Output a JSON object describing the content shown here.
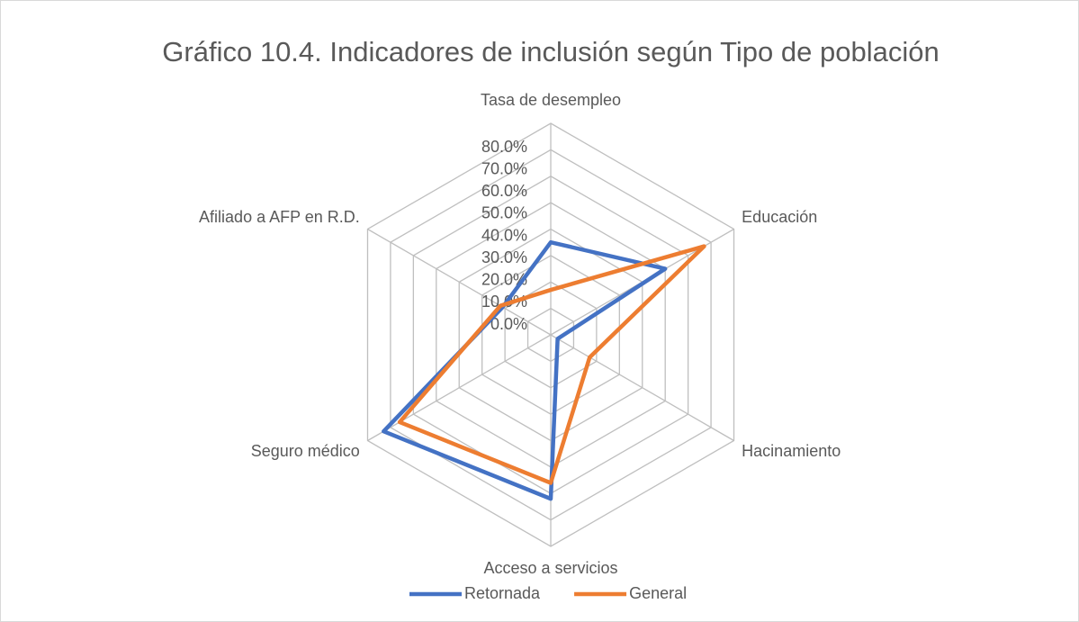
{
  "chart_data": {
    "type": "radar",
    "title": "Gráfico 10.4. Indicadores de inclusión según Tipo de población",
    "categories": [
      "Tasa de desempleo",
      "Educación",
      "Hacinamiento",
      "Acceso a servicios",
      "Seguro médico",
      "Afiliado a AFP en R.D."
    ],
    "series": [
      {
        "name": "Retornada",
        "color": "#4472c4",
        "values": [
          35,
          50,
          3,
          62,
          73,
          21
        ]
      },
      {
        "name": "General",
        "color": "#ed7d31",
        "values": [
          17,
          67,
          17,
          56,
          66,
          22
        ]
      }
    ],
    "ylim": [
      0,
      80
    ],
    "yticks": [
      {
        "value": 0,
        "label": "0.0%"
      },
      {
        "value": 10,
        "label": "10.0%"
      },
      {
        "value": 20,
        "label": "20.0%"
      },
      {
        "value": 30,
        "label": "30.0%"
      },
      {
        "value": 40,
        "label": "40.0%"
      },
      {
        "value": 50,
        "label": "50.0%"
      },
      {
        "value": 60,
        "label": "60.0%"
      },
      {
        "value": 70,
        "label": "70.0%"
      },
      {
        "value": 80,
        "label": "80.0%"
      }
    ],
    "grid": true,
    "legend": "bottom"
  }
}
